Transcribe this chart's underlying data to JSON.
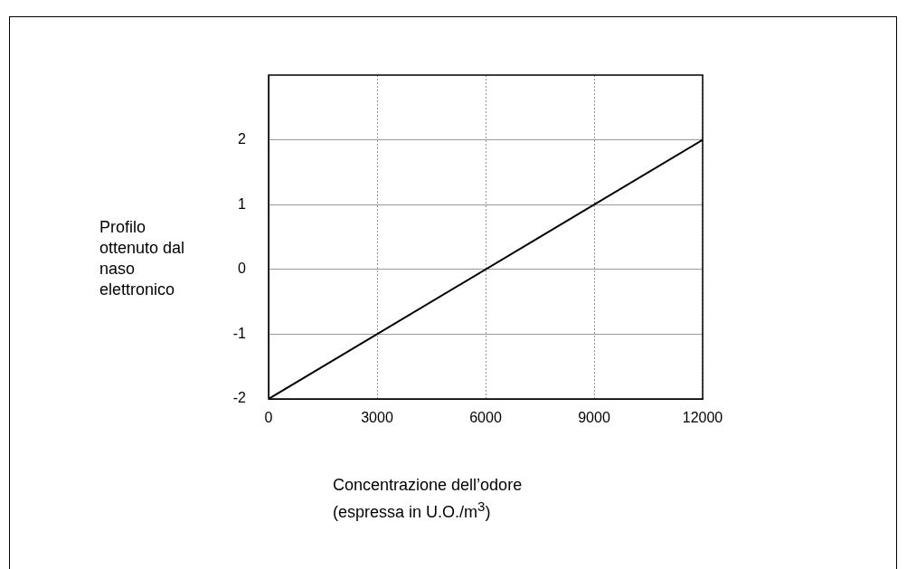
{
  "chart_data": {
    "type": "line",
    "xlabel": "Concentrazione dell’odore\n(espressa in U.O./m$^{3}$)",
    "ylabel": "Profilo ottenuto dal naso elettronico",
    "x": [
      0,
      12000
    ],
    "series": [
      {
        "color": "#000000",
        "values": [
          -2,
          2
        ]
      }
    ],
    "xlim": [
      0,
      12000
    ],
    "ylim": [
      -2,
      3
    ],
    "xticks": [
      0,
      3000,
      6000,
      9000,
      12000
    ],
    "yticks": [
      -2,
      -1,
      0,
      1,
      2
    ],
    "grid": true,
    "marker": "none",
    "line_style": "solid"
  }
}
